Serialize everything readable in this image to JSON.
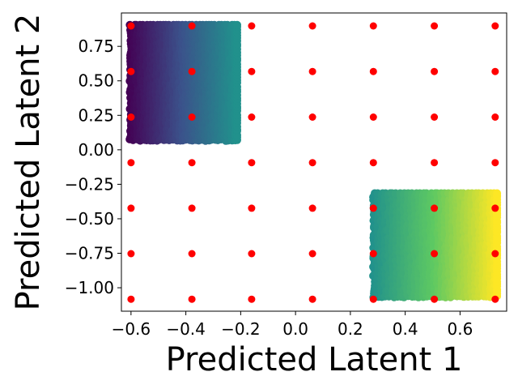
{
  "chart_data": {
    "type": "scatter",
    "title": "",
    "xlabel": "Predicted Latent 1",
    "ylabel": "Predicted Latent 2",
    "xlim": [
      -0.635,
      0.77
    ],
    "ylim": [
      -1.17,
      0.992
    ],
    "grid": false,
    "legend": "none",
    "xticks": [
      -0.6,
      -0.4,
      -0.2,
      0.0,
      0.2,
      0.4,
      0.6
    ],
    "xtick_labels": [
      "−0.6",
      "−0.4",
      "−0.2",
      "0.0",
      "0.2",
      "0.4",
      "0.6"
    ],
    "yticks": [
      0.75,
      0.5,
      0.25,
      0.0,
      -0.25,
      -0.5,
      -0.75,
      -1.0
    ],
    "ytick_labels": [
      "0.75",
      "0.50",
      "0.25",
      "0.00",
      "−0.25",
      "−0.50",
      "−0.75",
      "−1.00"
    ],
    "series": [
      {
        "kind": "dense-cluster",
        "colormap": "viridis",
        "x_range": [
          -0.605,
          -0.213
        ],
        "y_range": [
          0.065,
          0.905
        ],
        "color_range": [
          0.0,
          0.5
        ],
        "color": "#440154"
      },
      {
        "kind": "dense-cluster",
        "colormap": "viridis",
        "x_range": [
          0.283,
          0.735
        ],
        "y_range": [
          -1.07,
          -0.315
        ],
        "color_range": [
          0.5,
          1.0
        ],
        "color": "#fde725"
      },
      {
        "kind": "grid-points",
        "color": "#ff0000",
        "x": [
          -0.6,
          -0.378,
          -0.16,
          0.062,
          0.284,
          0.506,
          0.728
        ],
        "y": [
          0.898,
          0.568,
          0.237,
          -0.093,
          -0.423,
          -0.753,
          -1.083
        ]
      }
    ]
  }
}
